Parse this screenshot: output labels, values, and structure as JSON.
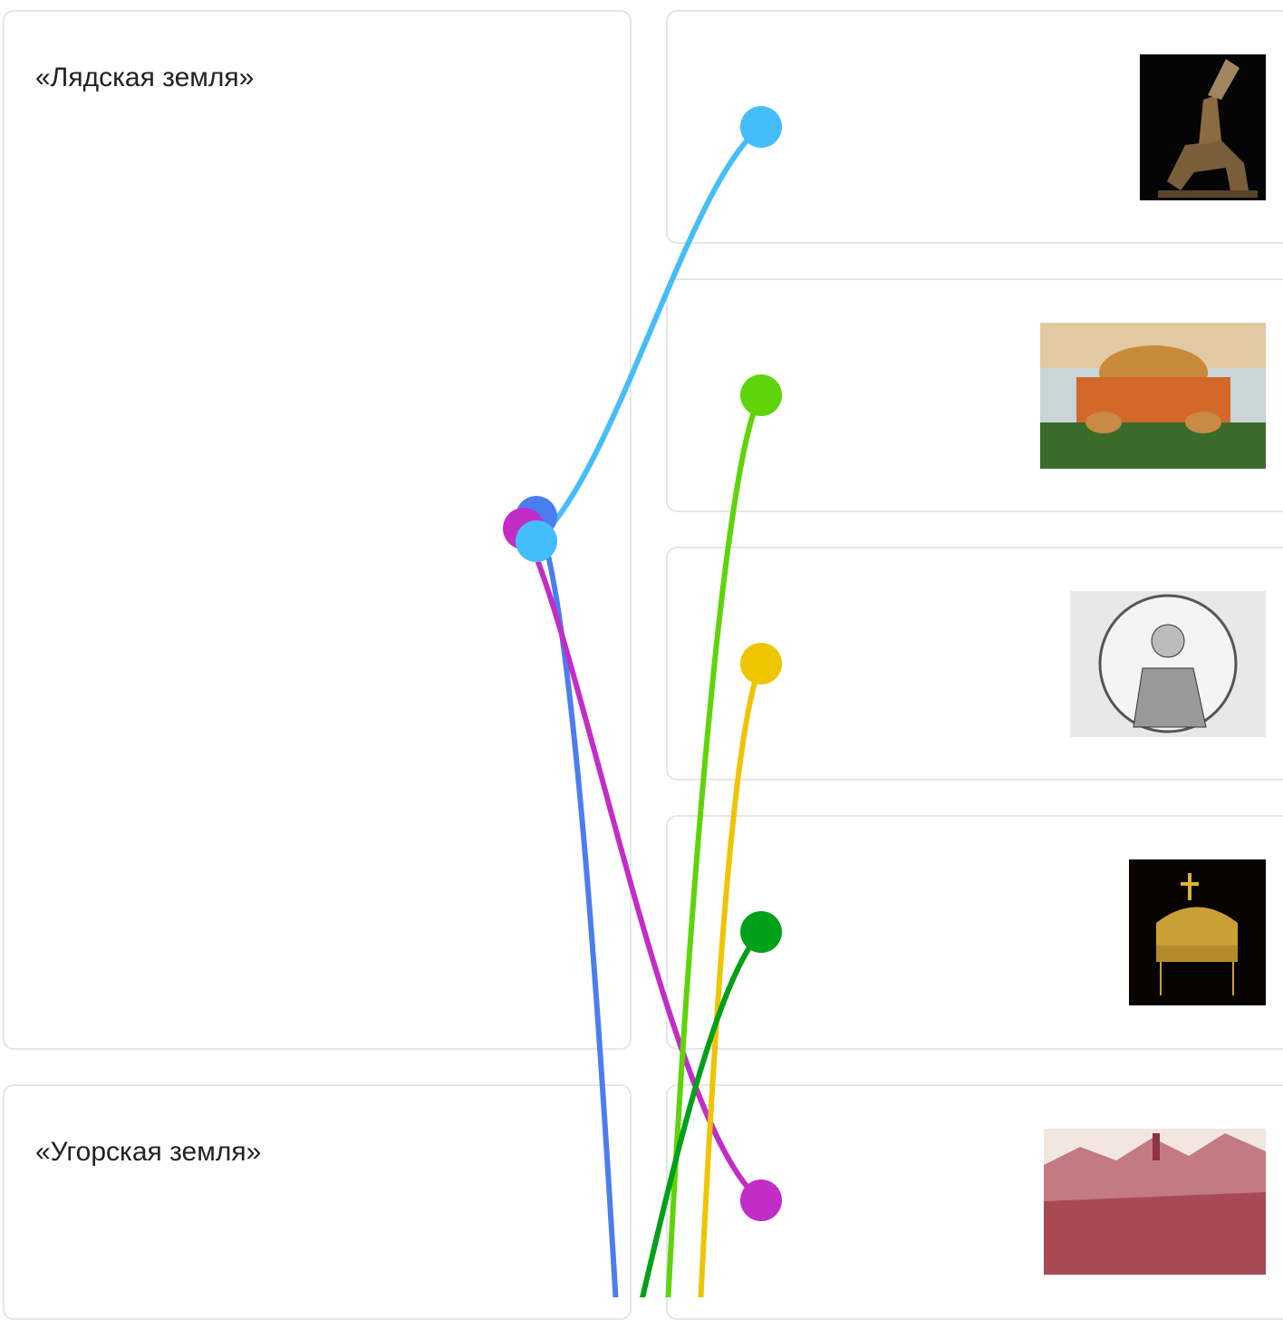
{
  "groups": [
    {
      "label": "«Лядская земля»"
    },
    {
      "label": "«Угорская земля»"
    }
  ]
}
